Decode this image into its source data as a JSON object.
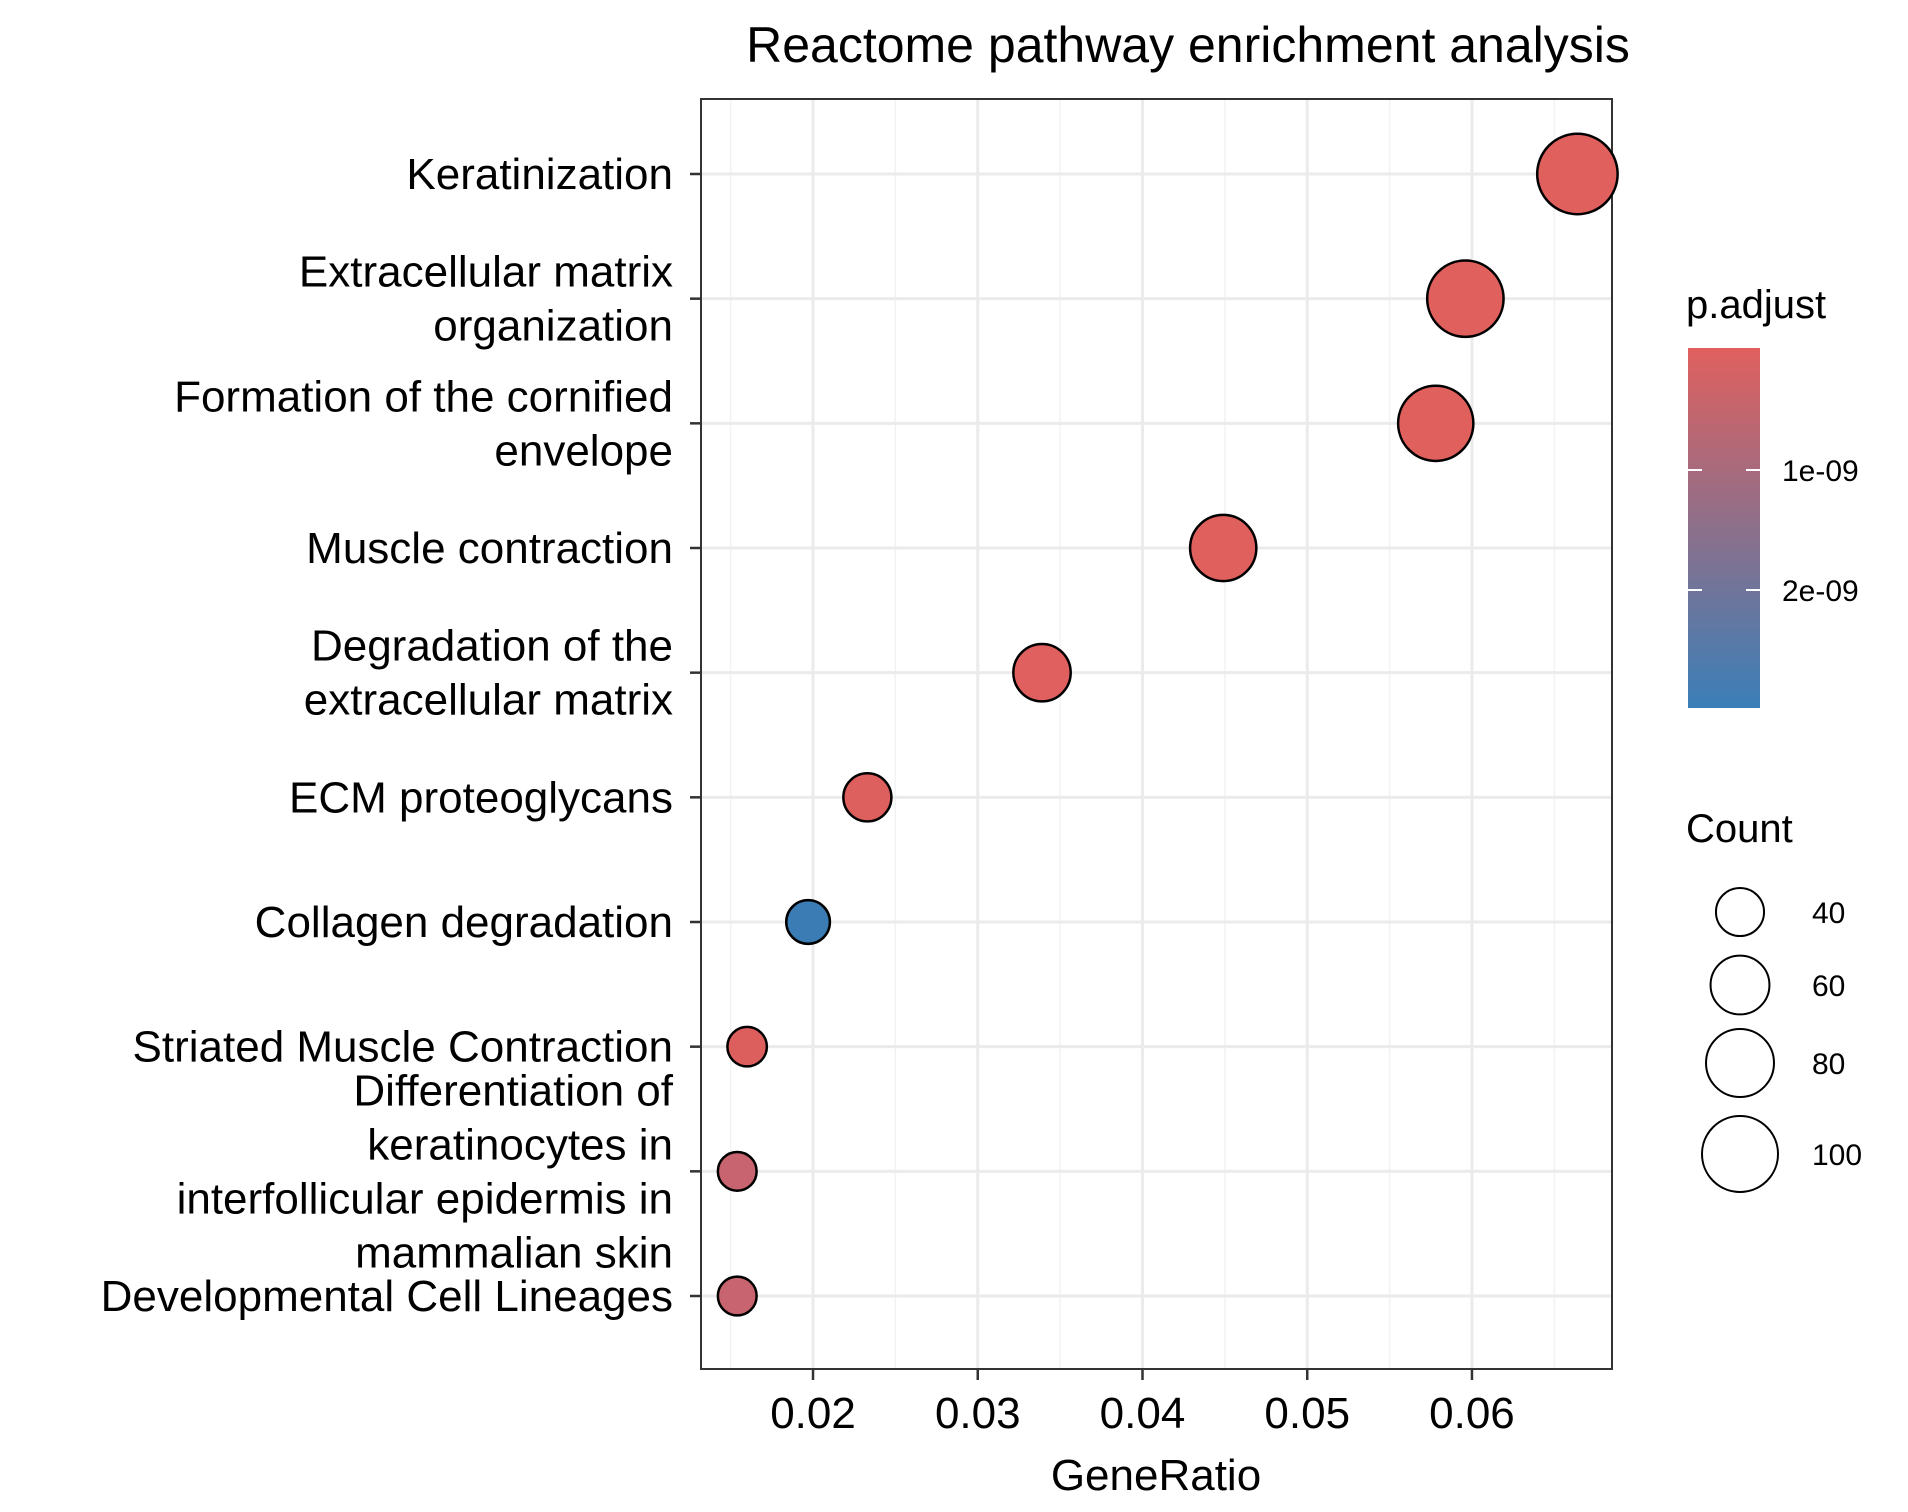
{
  "chart_data": {
    "type": "scatter",
    "title": "Reactome pathway enrichment analysis",
    "xlabel": "GeneRatio",
    "ylabel": "",
    "xlim": [
      0.0132,
      0.0685
    ],
    "xticks": [
      "0.02",
      "0.03",
      "0.04",
      "0.05",
      "0.06"
    ],
    "xtick_values": [
      0.02,
      0.03,
      0.04,
      0.05,
      0.06
    ],
    "grid": true,
    "categories": [
      [
        "Keratinization"
      ],
      [
        "Extracellular matrix",
        "organization"
      ],
      [
        "Formation of the cornified",
        "envelope"
      ],
      [
        "Muscle contraction"
      ],
      [
        "Degradation of the",
        "extracellular matrix"
      ],
      [
        "ECM proteoglycans"
      ],
      [
        "Collagen degradation"
      ],
      [
        "Striated Muscle Contraction"
      ],
      [
        "Differentiation of",
        "keratinocytes in",
        "interfollicular epidermis in",
        "mammalian skin"
      ],
      [
        "Developmental Cell Lineages"
      ]
    ],
    "points": [
      {
        "gene_ratio": 0.0664,
        "count": 112,
        "p_adjust": 6e-12,
        "color": "#E0605E"
      },
      {
        "gene_ratio": 0.0596,
        "count": 101,
        "p_adjust": 1e-11,
        "color": "#E0605E"
      },
      {
        "gene_ratio": 0.0578,
        "count": 98,
        "p_adjust": 1e-11,
        "color": "#E0605E"
      },
      {
        "gene_ratio": 0.0449,
        "count": 76,
        "p_adjust": 1e-11,
        "color": "#E0605E"
      },
      {
        "gene_ratio": 0.0339,
        "count": 57,
        "p_adjust": 1e-11,
        "color": "#DF605E"
      },
      {
        "gene_ratio": 0.0233,
        "count": 40,
        "p_adjust": 2e-11,
        "color": "#DE605E"
      },
      {
        "gene_ratio": 0.0197,
        "count": 33,
        "p_adjust": 2.9e-09,
        "color": "#3B7CB5"
      },
      {
        "gene_ratio": 0.016,
        "count": 27,
        "p_adjust": 1e-10,
        "color": "#DC5F5E"
      },
      {
        "gene_ratio": 0.0154,
        "count": 26,
        "p_adjust": 5.5e-10,
        "color": "#C8646F"
      },
      {
        "gene_ratio": 0.0154,
        "count": 26,
        "p_adjust": 5.5e-10,
        "color": "#C8646F"
      }
    ],
    "legend": {
      "color_title": "p.adjust",
      "color_ticks": [
        "1e-09",
        "2e-09"
      ],
      "color_low": "#E0605E",
      "color_high": "#3A7FB8",
      "size_title": "Count",
      "size_values": [
        40,
        60,
        80,
        100
      ],
      "size_labels": [
        "40",
        "60",
        "80",
        "100"
      ],
      "placement": "right"
    }
  }
}
